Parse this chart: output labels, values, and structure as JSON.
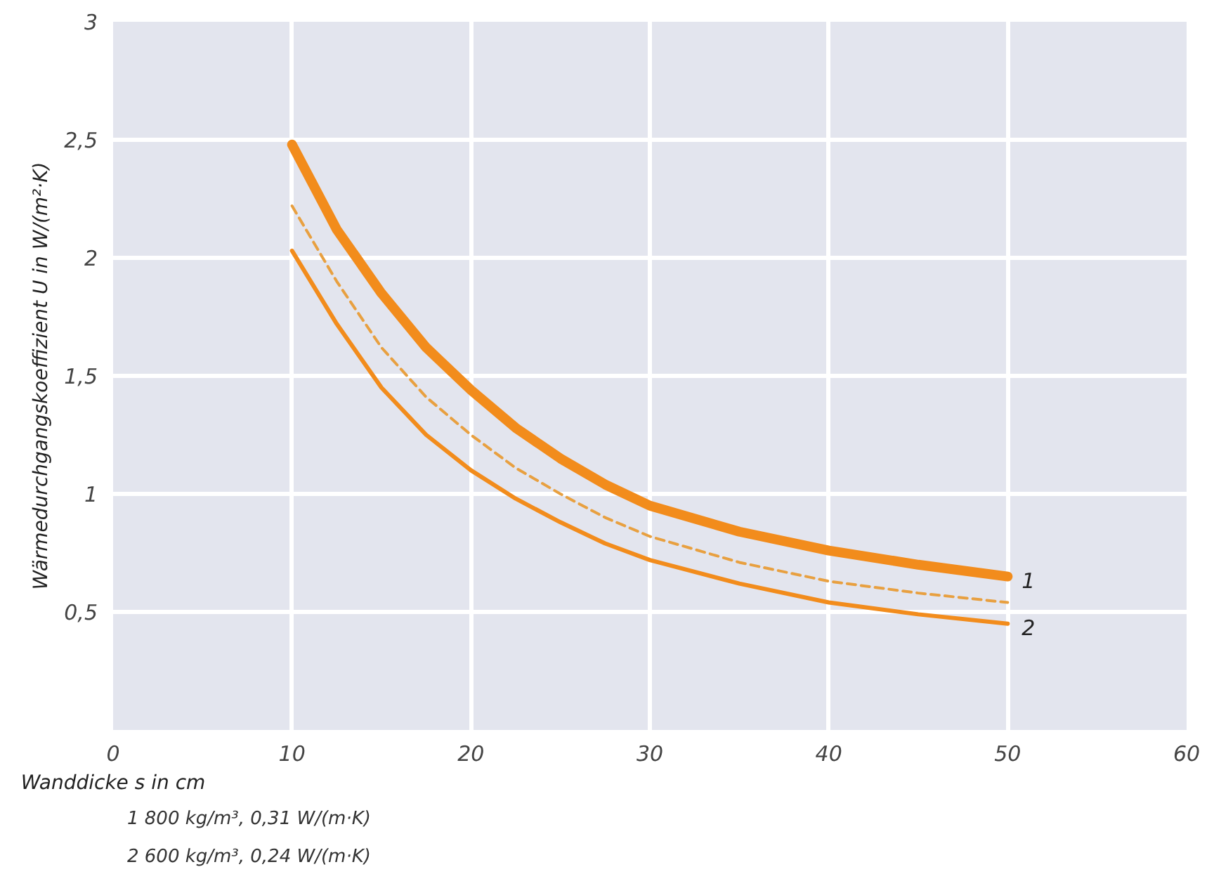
{
  "chart_data": {
    "type": "line",
    "xlabel": "Wanddicke s in cm",
    "ylabel": "Wärmedurchgangskoeffizient U in W/(m²·K)",
    "x": [
      10,
      12.5,
      15,
      17.5,
      20,
      22.5,
      25,
      27.5,
      30,
      35,
      40,
      45,
      50
    ],
    "series": [
      {
        "name": "1",
        "color": "#f28c1c",
        "line_style": "solid",
        "values": [
          2.48,
          2.12,
          1.85,
          1.62,
          1.44,
          1.28,
          1.15,
          1.04,
          0.95,
          0.84,
          0.76,
          0.7,
          0.65
        ]
      },
      {
        "color": "#e8a040",
        "line_style": "dashed",
        "values": [
          2.22,
          1.9,
          1.62,
          1.41,
          1.25,
          1.11,
          1.0,
          0.9,
          0.82,
          0.71,
          0.63,
          0.58,
          0.54
        ]
      },
      {
        "name": "2",
        "color": "#f28c1c",
        "line_style": "solid",
        "values": [
          2.03,
          1.72,
          1.45,
          1.25,
          1.1,
          0.98,
          0.88,
          0.79,
          0.72,
          0.62,
          0.54,
          0.49,
          0.45
        ]
      }
    ],
    "xlim": [
      0,
      60
    ],
    "ylim": [
      0,
      3
    ],
    "xticks": [
      0,
      10,
      20,
      30,
      40,
      50,
      60
    ],
    "yticks": [
      {
        "value": 0.5,
        "label": "0,5"
      },
      1,
      {
        "value": 1.5,
        "label": "1,5"
      },
      2,
      {
        "value": 2.5,
        "label": "2,5"
      },
      3
    ],
    "grid": true,
    "marker": "none",
    "annotations": [
      "1    800 kg/m³, 0,31 W/(m·K)",
      "2    600 kg/m³, 0,24 W/(m·K)"
    ]
  }
}
